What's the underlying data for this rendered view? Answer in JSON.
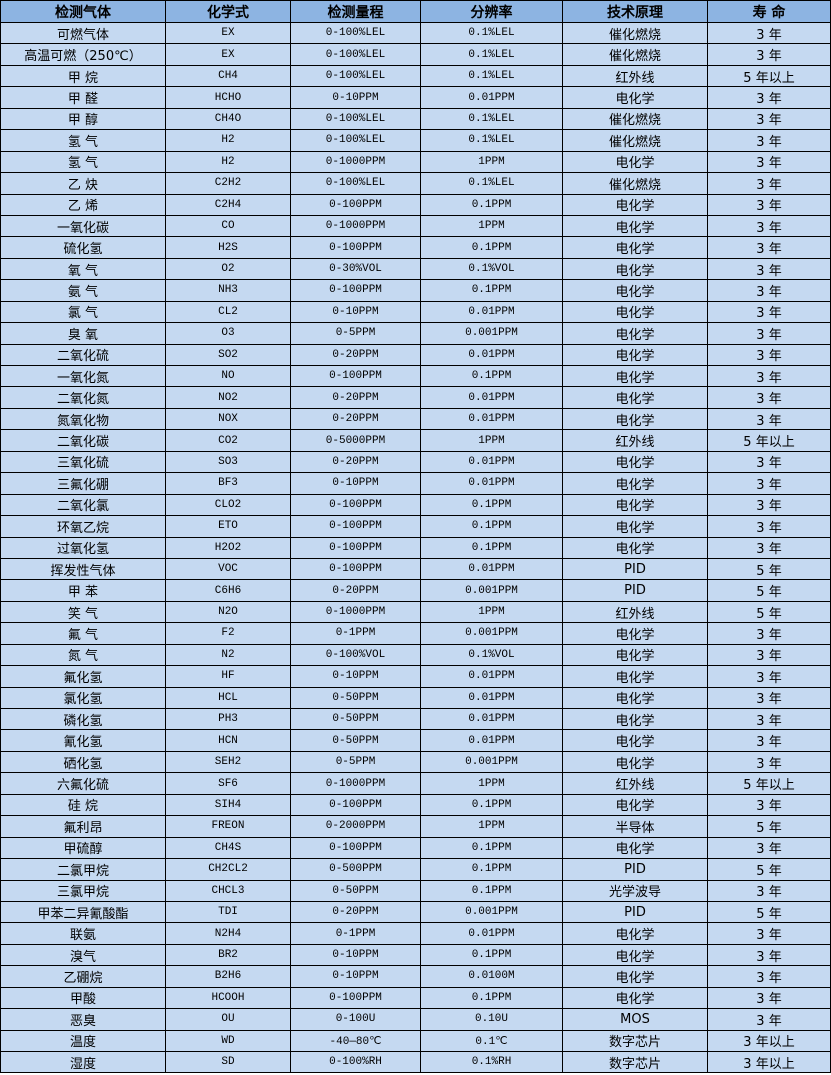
{
  "colors": {
    "header_bg": "#8db4e2",
    "row_bg": "#c5d9f1",
    "border": "#000000"
  },
  "table": {
    "headers": [
      "检测气体",
      "化学式",
      "检测量程",
      "分辨率",
      "技术原理",
      "寿 命"
    ],
    "rows": [
      [
        "可燃气体",
        "EX",
        "0-100%LEL",
        "0.1%LEL",
        "催化燃烧",
        "3 年"
      ],
      [
        "高温可燃（250℃）",
        "EX",
        "0-100%LEL",
        "0.1%LEL",
        "催化燃烧",
        "3 年"
      ],
      [
        "甲 烷",
        "CH4",
        "0-100%LEL",
        "0.1%LEL",
        "红外线",
        "5 年以上"
      ],
      [
        "甲 醛",
        "HCHO",
        "0-10PPM",
        "0.01PPM",
        "电化学",
        "3 年"
      ],
      [
        "甲 醇",
        "CH4O",
        "0-100%LEL",
        "0.1%LEL",
        "催化燃烧",
        "3 年"
      ],
      [
        "氢 气",
        "H2",
        "0-100%LEL",
        "0.1%LEL",
        "催化燃烧",
        "3 年"
      ],
      [
        "氢 气",
        "H2",
        "0-1000PPM",
        "1PPM",
        "电化学",
        "3 年"
      ],
      [
        "乙 炔",
        "C2H2",
        "0-100%LEL",
        "0.1%LEL",
        "催化燃烧",
        "3 年"
      ],
      [
        "乙 烯",
        "C2H4",
        "0-100PPM",
        "0.1PPM",
        "电化学",
        "3 年"
      ],
      [
        "一氧化碳",
        "CO",
        "0-1000PPM",
        "1PPM",
        "电化学",
        "3 年"
      ],
      [
        "硫化氢",
        "H2S",
        "0-100PPM",
        "0.1PPM",
        "电化学",
        "3 年"
      ],
      [
        "氧 气",
        "O2",
        "0-30%VOL",
        "0.1%VOL",
        "电化学",
        "3 年"
      ],
      [
        "氨 气",
        "NH3",
        "0-100PPM",
        "0.1PPM",
        "电化学",
        "3 年"
      ],
      [
        "氯 气",
        "CL2",
        "0-10PPM",
        "0.01PPM",
        "电化学",
        "3 年"
      ],
      [
        "臭 氧",
        "O3",
        "0-5PPM",
        "0.001PPM",
        "电化学",
        "3 年"
      ],
      [
        "二氧化硫",
        "SO2",
        "0-20PPM",
        "0.01PPM",
        "电化学",
        "3 年"
      ],
      [
        "一氧化氮",
        "NO",
        "0-100PPM",
        "0.1PPM",
        "电化学",
        "3 年"
      ],
      [
        "二氧化氮",
        "NO2",
        "0-20PPM",
        "0.01PPM",
        "电化学",
        "3 年"
      ],
      [
        "氮氧化物",
        "NOX",
        "0-20PPM",
        "0.01PPM",
        "电化学",
        "3 年"
      ],
      [
        "二氧化碳",
        "CO2",
        "0-5000PPM",
        "1PPM",
        "红外线",
        "5 年以上"
      ],
      [
        "三氧化硫",
        "SO3",
        "0-20PPM",
        "0.01PPM",
        "电化学",
        "3 年"
      ],
      [
        "三氟化硼",
        "BF3",
        "0-10PPM",
        "0.01PPM",
        "电化学",
        "3 年"
      ],
      [
        "二氧化氯",
        "CLO2",
        "0-100PPM",
        "0.1PPM",
        "电化学",
        "3 年"
      ],
      [
        "环氧乙烷",
        "ETO",
        "0-100PPM",
        "0.1PPM",
        "电化学",
        "3 年"
      ],
      [
        "过氧化氢",
        "H2O2",
        "0-100PPM",
        "0.1PPM",
        "电化学",
        "3 年"
      ],
      [
        "挥发性气体",
        "VOC",
        "0-100PPM",
        "0.01PPM",
        "PID",
        "5 年"
      ],
      [
        "甲 苯",
        "C6H6",
        "0-20PPM",
        "0.001PPM",
        "PID",
        "5 年"
      ],
      [
        "笑 气",
        "N2O",
        "0-1000PPM",
        "1PPM",
        "红外线",
        "5 年"
      ],
      [
        "氟 气",
        "F2",
        "0-1PPM",
        "0.001PPM",
        "电化学",
        "3 年"
      ],
      [
        "氮 气",
        "N2",
        "0-100%VOL",
        "0.1%VOL",
        "电化学",
        "3 年"
      ],
      [
        "氟化氢",
        "HF",
        "0-10PPM",
        "0.01PPM",
        "电化学",
        "3 年"
      ],
      [
        "氯化氢",
        "HCL",
        "0-50PPM",
        "0.01PPM",
        "电化学",
        "3 年"
      ],
      [
        "磷化氢",
        "PH3",
        "0-50PPM",
        "0.01PPM",
        "电化学",
        "3 年"
      ],
      [
        "氰化氢",
        "HCN",
        "0-50PPM",
        "0.01PPM",
        "电化学",
        "3 年"
      ],
      [
        "硒化氢",
        "SEH2",
        "0-5PPM",
        "0.001PPM",
        "电化学",
        "3 年"
      ],
      [
        "六氟化硫",
        "SF6",
        "0-1000PPM",
        "1PPM",
        "红外线",
        "5 年以上"
      ],
      [
        "硅 烷",
        "SIH4",
        "0-100PPM",
        "0.1PPM",
        "电化学",
        "3 年"
      ],
      [
        "氟利昂",
        "FREON",
        "0-2000PPM",
        "1PPM",
        "半导体",
        "5 年"
      ],
      [
        "甲硫醇",
        "CH4S",
        "0-100PPM",
        "0.1PPM",
        "电化学",
        "3 年"
      ],
      [
        "二氯甲烷",
        "CH2CL2",
        "0-500PPM",
        "0.1PPM",
        "PID",
        "5 年"
      ],
      [
        "三氯甲烷",
        "CHCL3",
        "0-50PPM",
        "0.1PPM",
        "光学波导",
        "3 年"
      ],
      [
        "甲苯二异氰酸酯",
        "TDI",
        "0-20PPM",
        "0.001PPM",
        "PID",
        "5 年"
      ],
      [
        "联氨",
        "N2H4",
        "0-1PPM",
        "0.01PPM",
        "电化学",
        "3 年"
      ],
      [
        "溴气",
        "BR2",
        "0-10PPM",
        "0.1PPM",
        "电化学",
        "3 年"
      ],
      [
        "乙硼烷",
        "B2H6",
        "0-10PPM",
        "0.0100M",
        "电化学",
        "3 年"
      ],
      [
        "甲酸",
        "HCOOH",
        "0-100PPM",
        "0.1PPM",
        "电化学",
        "3 年"
      ],
      [
        "恶臭",
        "OU",
        "0-100U",
        "0.10U",
        "MOS",
        "3 年"
      ],
      [
        "温度",
        "WD",
        "-40—80℃",
        "0.1℃",
        "数字芯片",
        "3 年以上"
      ],
      [
        "湿度",
        "SD",
        "0-100%RH",
        "0.1%RH",
        "数字芯片",
        "3 年以上"
      ]
    ]
  }
}
